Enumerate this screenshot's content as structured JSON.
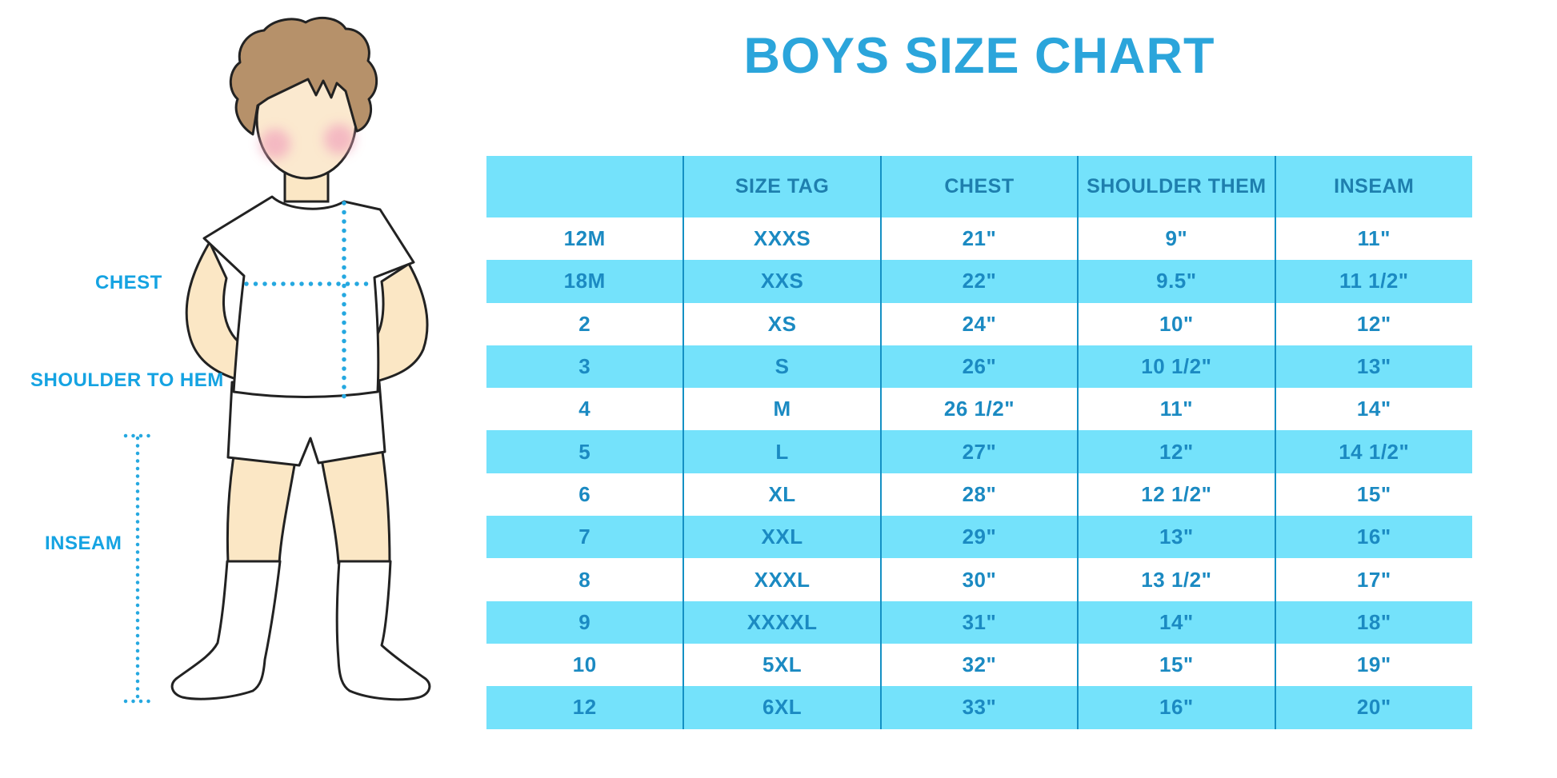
{
  "title": "BOYS SIZE CHART",
  "figure": {
    "chest_label": "CHEST",
    "shoulder_to_hem_label": "SHOULDER TO HEM",
    "inseam_label": "INSEAM"
  },
  "colors": {
    "title_blue": "#2BA5DB",
    "row_blue": "#74E2FB",
    "divider_blue": "#1490C4",
    "table_text_blue": "#1B8AC2",
    "label_blue": "#15A3E2",
    "dotted_line_blue": "#25A8E0",
    "hair_brown": "#B6916A",
    "skin": "#FBE7C5"
  },
  "chart_data": {
    "type": "table",
    "title": "BOYS SIZE CHART",
    "headers": [
      "",
      "SIZE TAG",
      "CHEST",
      "SHOULDER THEM",
      "INSEAM"
    ],
    "rows": [
      [
        "12M",
        "XXXS",
        "21\"",
        "9\"",
        "11\""
      ],
      [
        "18M",
        "XXS",
        "22\"",
        "9.5\"",
        "11 1/2\""
      ],
      [
        "2",
        "XS",
        "24\"",
        "10\"",
        "12\""
      ],
      [
        "3",
        "S",
        "26\"",
        "10 1/2\"",
        "13\""
      ],
      [
        "4",
        "M",
        "26 1/2\"",
        "11\"",
        "14\""
      ],
      [
        "5",
        "L",
        "27\"",
        "12\"",
        "14 1/2\""
      ],
      [
        "6",
        "XL",
        "28\"",
        "12 1/2\"",
        "15\""
      ],
      [
        "7",
        "XXL",
        "29\"",
        "13\"",
        "16\""
      ],
      [
        "8",
        "XXXL",
        "30\"",
        "13 1/2\"",
        "17\""
      ],
      [
        "9",
        "XXXXL",
        "31\"",
        "14\"",
        "18\""
      ],
      [
        "10",
        "5XL",
        "32\"",
        "15\"",
        "19\""
      ],
      [
        "12",
        "6XL",
        "33\"",
        "16\"",
        "20\""
      ]
    ]
  }
}
